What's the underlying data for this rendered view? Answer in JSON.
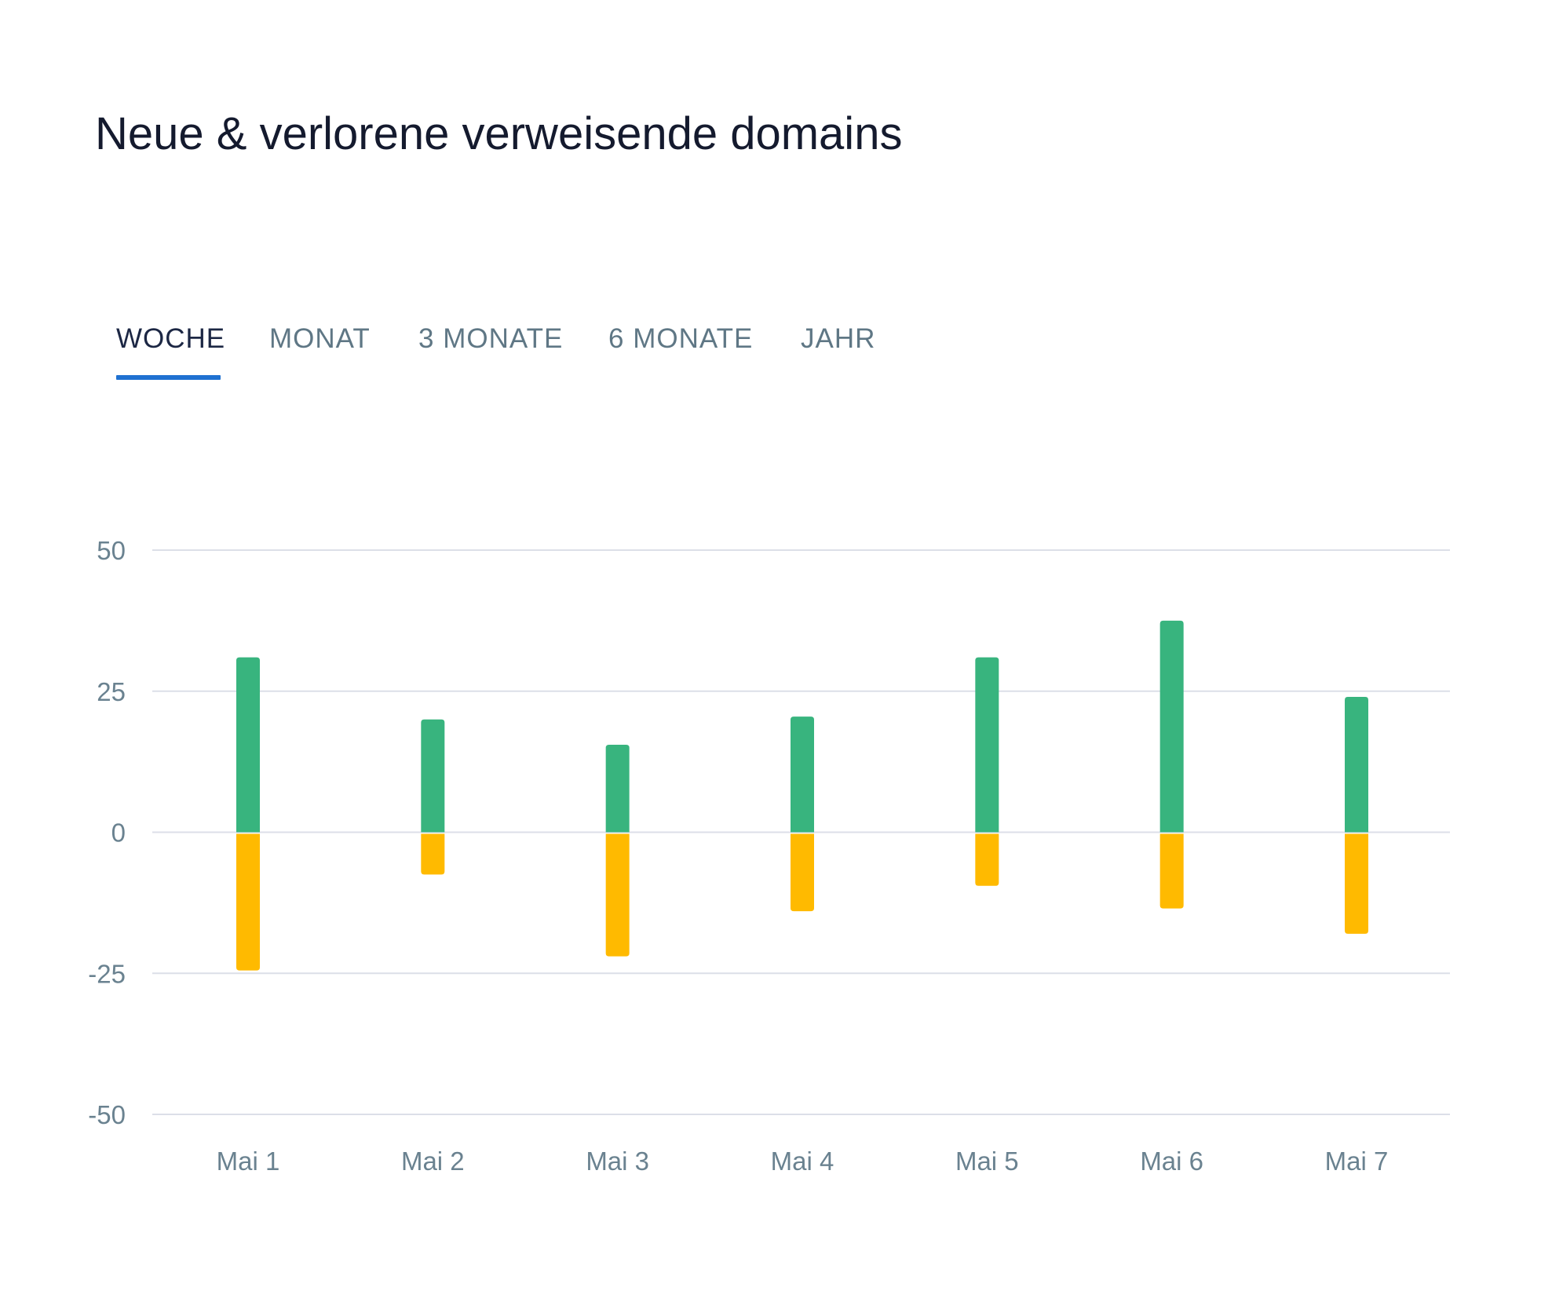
{
  "title": "Neue & verlorene verweisende domains",
  "tabs": [
    {
      "label": "WOCHE",
      "active": true
    },
    {
      "label": "MONAT",
      "active": false
    },
    {
      "label": "3 MONATE",
      "active": false
    },
    {
      "label": "6 MONATE",
      "active": false
    },
    {
      "label": "JAHR",
      "active": false
    }
  ],
  "colors": {
    "new": "#38b47e",
    "lost": "#ffba00",
    "grid": "#dcdfe8",
    "accent": "#1f71d1"
  },
  "chart_data": {
    "type": "bar",
    "title": "",
    "xlabel": "",
    "ylabel": "",
    "categories": [
      "Mai 1",
      "Mai 2",
      "Mai 3",
      "Mai 4",
      "Mai 5",
      "Mai 6",
      "Mai 7"
    ],
    "series": [
      {
        "values": [
          31,
          20,
          15.5,
          20.5,
          31,
          37.5,
          24
        ]
      },
      {
        "values": [
          -24.5,
          -7.5,
          -22,
          -14,
          -9.5,
          -13.5,
          -18
        ]
      }
    ],
    "ylim": [
      -50,
      50
    ],
    "yticks": [
      50,
      25,
      0,
      -25,
      -50
    ],
    "ytick_labels": [
      "50",
      "25",
      "0",
      "-25",
      "-50"
    ],
    "grid": true,
    "stacked": true,
    "legend": "none"
  }
}
